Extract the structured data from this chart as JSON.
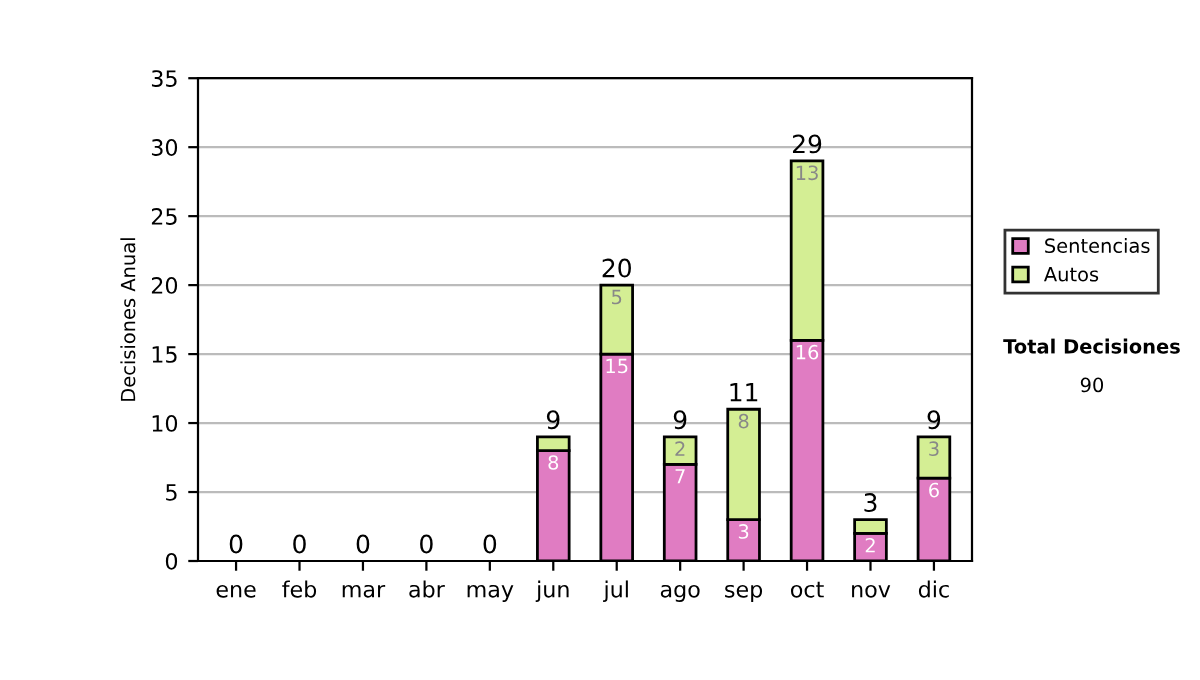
{
  "chart_data": {
    "type": "bar",
    "stacked": true,
    "ylabel": "Decisiones Anual",
    "categories": [
      "ene",
      "feb",
      "mar",
      "abr",
      "may",
      "jun",
      "jul",
      "ago",
      "sep",
      "oct",
      "nov",
      "dic"
    ],
    "series": [
      {
        "name": "Sentencias",
        "color": "#e07cc2",
        "values": [
          0,
          0,
          0,
          0,
          0,
          8,
          15,
          7,
          3,
          16,
          2,
          6
        ],
        "value_labels": [
          null,
          null,
          null,
          null,
          null,
          "8",
          "15",
          "7",
          "3",
          "16",
          "2",
          "6"
        ]
      },
      {
        "name": "Autos",
        "color": "#d4ee94",
        "values": [
          0,
          0,
          0,
          0,
          0,
          1,
          5,
          2,
          8,
          13,
          1,
          3
        ],
        "value_labels": [
          null,
          null,
          null,
          null,
          null,
          null,
          "5",
          "2",
          "8",
          "13",
          null,
          "3"
        ]
      }
    ],
    "totals": [
      "0",
      "0",
      "0",
      "0",
      "0",
      "9",
      "20",
      "9",
      "11",
      "29",
      "3",
      "9"
    ],
    "ylim": [
      0,
      35
    ],
    "yticks": [
      0,
      5,
      10,
      15,
      20,
      25,
      30,
      35
    ],
    "grid": "y",
    "legend": "right",
    "annotations": [
      "Total Decisiones",
      "90"
    ]
  }
}
